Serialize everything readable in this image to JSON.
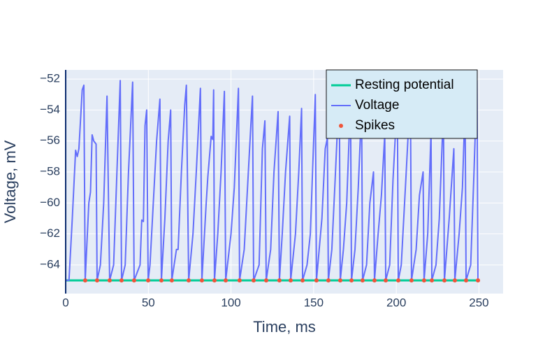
{
  "chart_data": {
    "type": "line",
    "xlabel": "Time, ms",
    "ylabel": "Voltage, mV",
    "xlim": [
      0,
      264.6
    ],
    "ylim": [
      -65.85,
      -51.41
    ],
    "xticks": [
      0,
      50,
      100,
      150,
      200,
      250
    ],
    "yticks": [
      {
        "value": -64,
        "label": "−64"
      },
      {
        "value": -62,
        "label": "−62"
      },
      {
        "value": -60,
        "label": "−60"
      },
      {
        "value": -58,
        "label": "−58"
      },
      {
        "value": -56,
        "label": "−56"
      },
      {
        "value": -54,
        "label": "−54"
      },
      {
        "value": -52,
        "label": "−52"
      }
    ],
    "grid": true,
    "legend": "top-right",
    "series": [
      {
        "name": "Resting potential",
        "color": "#00cc96",
        "mode": "lines",
        "x": [
          0,
          250
        ],
        "values": [
          -65,
          -65
        ]
      },
      {
        "name": "Voltage",
        "color": "#636efa",
        "mode": "lines",
        "x": [
          0,
          2,
          4,
          6,
          7,
          8,
          10,
          11,
          11.8,
          14,
          15,
          16,
          17,
          18.4,
          19.0,
          21,
          23,
          25,
          26.6,
          29,
          31,
          33,
          33.8,
          36,
          38,
          40.5,
          41.4,
          45,
          46,
          47,
          48,
          49,
          49.9,
          51,
          53,
          55,
          57,
          57.9,
          60,
          62,
          63.5,
          64.2,
          67,
          68,
          70,
          72,
          73,
          74.4,
          77,
          79,
          81.5,
          82.4,
          85,
          86,
          88,
          89,
          89.5,
          90.0,
          92,
          94,
          96,
          96.8,
          100,
          102,
          104.5,
          105.2,
          108,
          110,
          112,
          113,
          113.7,
          117,
          119,
          120.5,
          121.3,
          124,
          126,
          128.5,
          129.3,
          131,
          133,
          135.5,
          136.1,
          139,
          141,
          142.7,
          143.3,
          146,
          148,
          151,
          151.7,
          155,
          157,
          158.3,
          158.9,
          161,
          163,
          165.5,
          166.1,
          168,
          170,
          172.3,
          172.9,
          175,
          177,
          179,
          179.6,
          182,
          184,
          186.2,
          186.8,
          189,
          191,
          193,
          193.6,
          196,
          198,
          200.6,
          201.2,
          203,
          206,
          208.5,
          209.2,
          212,
          214,
          216.2,
          216.8,
          219,
          221,
          221.5,
          224,
          226,
          228.5,
          229.1,
          232,
          234.8,
          235.4,
          238,
          240,
          241.6,
          242.2,
          245,
          247,
          248.8,
          249.4
        ],
        "values": [
          -65,
          -65,
          -61,
          -56.6,
          -57,
          -56.5,
          -52.7,
          -52.4,
          -65,
          -60,
          -59.3,
          -55.6,
          -56,
          -56.2,
          -65,
          -64,
          -60,
          -53.1,
          -65,
          -64,
          -58,
          -52.1,
          -65,
          -64,
          -58,
          -52.2,
          -65,
          -64,
          -61.1,
          -61.2,
          -55,
          -54,
          -65,
          -64,
          -60,
          -56,
          -53.3,
          -65,
          -61,
          -56,
          -54,
          -65,
          -63,
          -63,
          -58,
          -53.7,
          -52.4,
          -65,
          -62,
          -58,
          -52.6,
          -65,
          -60,
          -58.3,
          -55.7,
          -55.9,
          -52.7,
          -65,
          -62,
          -58,
          -52.8,
          -65,
          -62,
          -59,
          -52.6,
          -65,
          -63,
          -59,
          -55,
          -53.1,
          -65,
          -64,
          -56.5,
          -54.7,
          -65,
          -63,
          -58,
          -54.1,
          -65,
          -62,
          -58,
          -54.4,
          -65,
          -62,
          -58,
          -53.9,
          -65,
          -64,
          -62,
          -53,
          -65,
          -61,
          -56.5,
          -55.8,
          -65,
          -63,
          -58.5,
          -52.6,
          -65,
          -63,
          -60,
          -53.3,
          -65,
          -63,
          -59,
          -53.8,
          -65,
          -64,
          -60,
          -58,
          -65,
          -62,
          -59.5,
          -55.6,
          -65,
          -64,
          -58.5,
          -53.3,
          -65,
          -64,
          -58,
          -52.8,
          -65,
          -63,
          -59.5,
          -58,
          -65,
          -62,
          -55.4,
          -65,
          -64,
          -61,
          -54,
          -65,
          -61,
          -56.5,
          -65,
          -62,
          -59,
          -53.7,
          -65,
          -64,
          -58,
          -52.1,
          -65
        ]
      },
      {
        "name": "Spikes",
        "color": "#ef553b",
        "mode": "markers",
        "x": [
          11.8,
          19.0,
          26.6,
          33.8,
          41.4,
          49.9,
          57.9,
          64.2,
          74.4,
          82.4,
          90.0,
          96.8,
          105.2,
          113.7,
          121.3,
          129.3,
          136.1,
          143.3,
          151.7,
          158.9,
          166.1,
          172.9,
          179.6,
          186.8,
          193.6,
          201.2,
          209.2,
          216.8,
          221.5,
          229.1,
          235.4,
          242.2,
          249.4
        ],
        "values": [
          -65,
          -65,
          -65,
          -65,
          -65,
          -65,
          -65,
          -65,
          -65,
          -65,
          -65,
          -65,
          -65,
          -65,
          -65,
          -65,
          -65,
          -65,
          -65,
          -65,
          -65,
          -65,
          -65,
          -65,
          -65,
          -65,
          -65,
          -65,
          -65,
          -65,
          -65,
          -65,
          -65
        ]
      }
    ]
  }
}
